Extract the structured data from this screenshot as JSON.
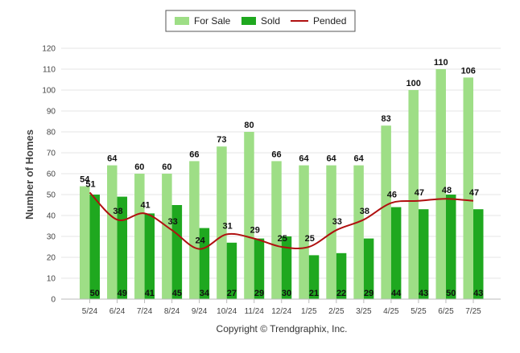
{
  "chart_data": {
    "type": "bar",
    "categories": [
      "5/24",
      "6/24",
      "7/24",
      "8/24",
      "9/24",
      "10/24",
      "11/24",
      "12/24",
      "1/25",
      "2/25",
      "3/25",
      "4/25",
      "5/25",
      "6/25",
      "7/25"
    ],
    "series": [
      {
        "name": "For Sale",
        "type": "bar",
        "color": "#9ede86",
        "values": [
          54,
          64,
          60,
          60,
          66,
          73,
          80,
          66,
          64,
          64,
          64,
          83,
          100,
          110,
          106
        ]
      },
      {
        "name": "Sold",
        "type": "bar",
        "color": "#1fa81f",
        "values": [
          50,
          49,
          41,
          45,
          34,
          27,
          29,
          30,
          21,
          22,
          29,
          44,
          43,
          50,
          43
        ]
      },
      {
        "name": "Pended",
        "type": "line",
        "color": "#b01010",
        "values": [
          51,
          38,
          41,
          33,
          24,
          31,
          29,
          25,
          25,
          33,
          38,
          46,
          47,
          48,
          47
        ]
      }
    ],
    "ylabel": "Number of Homes",
    "xlabel": "",
    "ylim": [
      0,
      120
    ],
    "yticks": [
      0,
      10,
      20,
      30,
      40,
      50,
      60,
      70,
      80,
      90,
      100,
      110,
      120
    ],
    "grid": true,
    "legend_position": "top-center"
  },
  "credit": "Copyright © Trendgraphix, Inc."
}
